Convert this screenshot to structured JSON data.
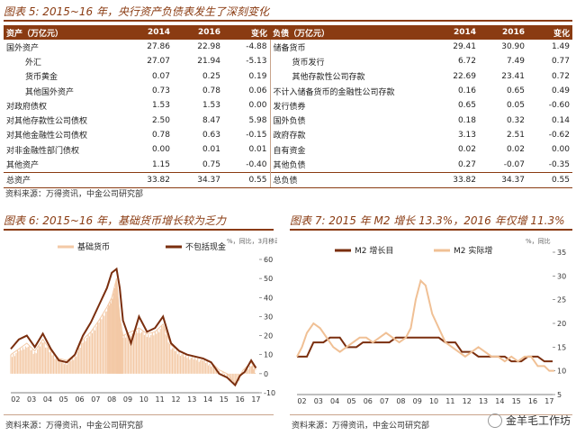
{
  "table": {
    "title": "图表 5: 2015~16 年，央行资产负债表发生了深刻变化",
    "header": {
      "assets": "资产（万亿元）",
      "y2014": "2014",
      "y2016": "2016",
      "chg": "变化",
      "liab": "负债（万亿元）"
    },
    "rows": [
      {
        "a_label": "国外资产",
        "a_indent": false,
        "a14": "27.86",
        "a16": "22.98",
        "achg": "-4.88",
        "l_label": "储备货币",
        "l_indent": false,
        "l14": "29.41",
        "l16": "30.90",
        "lchg": "1.49"
      },
      {
        "a_label": "外汇",
        "a_indent": true,
        "a14": "27.07",
        "a16": "21.94",
        "achg": "-5.13",
        "l_label": "货币发行",
        "l_indent": true,
        "l14": "6.72",
        "l16": "7.49",
        "lchg": "0.77"
      },
      {
        "a_label": "货币黄金",
        "a_indent": true,
        "a14": "0.07",
        "a16": "0.25",
        "achg": "0.19",
        "l_label": "其他存款性公司存款",
        "l_indent": true,
        "l14": "22.69",
        "l16": "23.41",
        "lchg": "0.72"
      },
      {
        "a_label": "其他国外资产",
        "a_indent": true,
        "a14": "0.73",
        "a16": "0.78",
        "achg": "0.06",
        "l_label": "不计入储备货币的金融性公司存款",
        "l_indent": false,
        "l14": "0.16",
        "l16": "0.65",
        "lchg": "0.49"
      },
      {
        "a_label": "对政府债权",
        "a_indent": false,
        "a14": "1.53",
        "a16": "1.53",
        "achg": "0.00",
        "l_label": "发行债券",
        "l_indent": false,
        "l14": "0.65",
        "l16": "0.05",
        "lchg": "-0.60"
      },
      {
        "a_label": "对其他存款性公司债权",
        "a_indent": false,
        "a14": "2.50",
        "a16": "8.47",
        "achg": "5.98",
        "l_label": "国外负债",
        "l_indent": false,
        "l14": "0.18",
        "l16": "0.32",
        "lchg": "0.14"
      },
      {
        "a_label": "对其他金融性公司债权",
        "a_indent": false,
        "a14": "0.78",
        "a16": "0.63",
        "achg": "-0.15",
        "l_label": "政府存款",
        "l_indent": false,
        "l14": "3.13",
        "l16": "2.51",
        "lchg": "-0.62"
      },
      {
        "a_label": "对非金融性部门债权",
        "a_indent": false,
        "a14": "0.00",
        "a16": "0.01",
        "achg": "0.01",
        "l_label": "自有资金",
        "l_indent": false,
        "l14": "0.02",
        "l16": "0.02",
        "lchg": "0.00"
      },
      {
        "a_label": "其他资产",
        "a_indent": false,
        "a14": "1.15",
        "a16": "0.75",
        "achg": "-0.40",
        "l_label": "其他负债",
        "l_indent": false,
        "l14": "0.27",
        "l16": "-0.07",
        "lchg": "-0.35"
      }
    ],
    "total": {
      "a_label": "总资产",
      "a14": "33.82",
      "a16": "34.37",
      "achg": "0.55",
      "l_label": "总负债",
      "l14": "33.82",
      "l16": "34.37",
      "lchg": "0.55"
    },
    "source": "资料来源：万得资讯，中金公司研究部"
  },
  "chart_data": [
    {
      "type": "area",
      "title": "图表 6: 2015~16 年，基础货币增长较为乏力",
      "series": [
        {
          "name": "基础货币",
          "style": "area",
          "color": "#f3c9a6",
          "x": [
            2002.0,
            2002.5,
            2003.0,
            2003.5,
            2004.0,
            2004.5,
            2005.0,
            2005.5,
            2006.0,
            2006.5,
            2007.0,
            2007.5,
            2008.0,
            2008.3,
            2008.6,
            2008.8,
            2009.0,
            2009.5,
            2010.0,
            2010.5,
            2011.0,
            2011.5,
            2012.0,
            2012.5,
            2013.0,
            2013.5,
            2014.0,
            2014.5,
            2015.0,
            2015.5,
            2016.0,
            2016.5,
            2017.0,
            2017.3
          ],
          "y": [
            10,
            13,
            16,
            12,
            18,
            12,
            8,
            7,
            10,
            18,
            22,
            28,
            35,
            40,
            50,
            30,
            20,
            22,
            24,
            21,
            22,
            26,
            15,
            12,
            10,
            9,
            8,
            6,
            2,
            0,
            -5,
            2,
            6,
            2
          ]
        },
        {
          "name": "不包括现金",
          "style": "line",
          "color": "#7a2e0e",
          "x": [
            2002.0,
            2002.5,
            2003.0,
            2003.5,
            2004.0,
            2004.5,
            2005.0,
            2005.5,
            2006.0,
            2006.5,
            2007.0,
            2007.5,
            2008.0,
            2008.3,
            2008.6,
            2008.8,
            2009.0,
            2009.5,
            2010.0,
            2010.5,
            2011.0,
            2011.5,
            2012.0,
            2012.5,
            2013.0,
            2013.5,
            2014.0,
            2014.5,
            2015.0,
            2015.5,
            2016.0,
            2016.3,
            2016.6,
            2017.0,
            2017.3
          ],
          "y": [
            13,
            18,
            20,
            14,
            21,
            13,
            7,
            6,
            10,
            20,
            27,
            36,
            45,
            53,
            55,
            45,
            28,
            16,
            30,
            22,
            24,
            30,
            16,
            12,
            10,
            9,
            8,
            6,
            0,
            -2,
            -6,
            -1,
            1,
            7,
            3
          ]
        }
      ],
      "xticks": [
        "02",
        "03",
        "04",
        "05",
        "06",
        "07",
        "08",
        "09",
        "10",
        "11",
        "12",
        "13",
        "14",
        "15",
        "16",
        "17"
      ],
      "ylim": [
        -10,
        60
      ],
      "yticks": [
        "-10",
        "0",
        "10",
        "20",
        "30",
        "40",
        "50",
        "60"
      ],
      "annotation": "%，同比，3月移动平均",
      "source": "资料来源：万得资讯，中金公司研究部"
    },
    {
      "type": "line",
      "title": "图表 7: 2015 年 M2 增长 13.3%，2016 年仅增 11.3%",
      "series": [
        {
          "name": "M2 增长目",
          "color": "#7a2e0e",
          "x": [
            2002.0,
            2002.6,
            2003.0,
            2003.6,
            2004.0,
            2004.6,
            2005.0,
            2005.6,
            2006.0,
            2006.6,
            2007.0,
            2007.6,
            2008.0,
            2008.6,
            2009.0,
            2009.6,
            2010.0,
            2010.6,
            2011.0,
            2011.6,
            2012.0,
            2012.6,
            2013.0,
            2013.6,
            2014.0,
            2014.6,
            2015.0,
            2015.6,
            2016.0,
            2016.6,
            2017.0,
            2017.5
          ],
          "y": [
            13,
            13,
            16,
            16,
            17,
            17,
            15,
            15,
            16,
            16,
            16,
            16,
            17,
            17,
            17,
            17,
            17,
            17,
            16,
            16,
            14,
            14,
            13,
            13,
            13,
            13,
            12,
            12,
            13,
            13,
            12,
            12
          ]
        },
        {
          "name": "M2 实际增",
          "color": "#f0c095",
          "x": [
            2002.0,
            2002.3,
            2002.6,
            2003.0,
            2003.4,
            2003.8,
            2004.2,
            2004.6,
            2005.0,
            2005.4,
            2005.8,
            2006.2,
            2006.6,
            2007.0,
            2007.4,
            2007.8,
            2008.2,
            2008.6,
            2008.9,
            2009.2,
            2009.5,
            2009.8,
            2010.2,
            2010.6,
            2011.0,
            2011.4,
            2011.8,
            2012.2,
            2012.6,
            2013.0,
            2013.4,
            2013.8,
            2014.2,
            2014.6,
            2015.0,
            2015.4,
            2015.8,
            2016.2,
            2016.6,
            2017.0,
            2017.3,
            2017.6
          ],
          "y": [
            13,
            15,
            18,
            20,
            19,
            17,
            15,
            14,
            15,
            16,
            17,
            17,
            16,
            17,
            18,
            17,
            16,
            17,
            19,
            25,
            29,
            28,
            22,
            19,
            16,
            15,
            14,
            13,
            14,
            15,
            14,
            13,
            13,
            12,
            13,
            12,
            13,
            13,
            11,
            11,
            10,
            10
          ]
        }
      ],
      "xticks": [
        "02",
        "03",
        "04",
        "05",
        "06",
        "07",
        "08",
        "09",
        "10",
        "11",
        "12",
        "13",
        "14",
        "15",
        "16",
        "17"
      ],
      "ylim": [
        5,
        35
      ],
      "yticks": [
        "5",
        "10",
        "15",
        "20",
        "25",
        "30",
        "35"
      ],
      "annotation": "%，同比",
      "source": "资料来源：万得资讯，中金公司研究部"
    }
  ],
  "watermark": "金羊毛工作坊"
}
